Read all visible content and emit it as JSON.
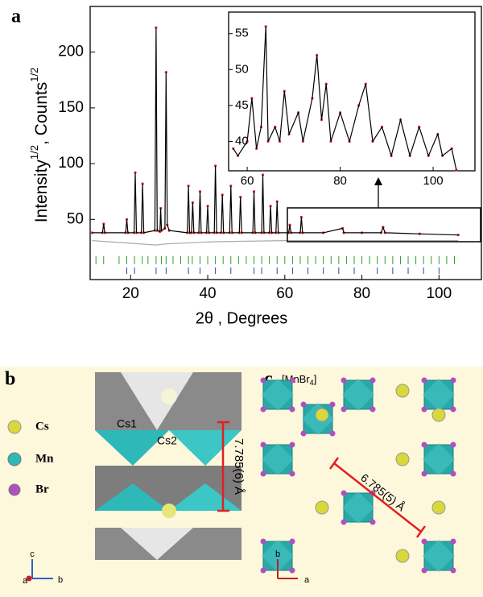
{
  "chart_data": {
    "type": "line",
    "panel_label": "a",
    "x_label": "2θ , Degrees",
    "y_label": [
      "Intensity",
      "1/2",
      ", Counts",
      "1/2"
    ],
    "xlim": [
      9.5,
      111
    ],
    "ylim": [
      -4,
      241
    ],
    "xticks": [
      20,
      40,
      60,
      80,
      100
    ],
    "yticks": [
      50,
      100,
      150,
      200
    ],
    "series": [
      {
        "color": "#000000",
        "marker_color": "#e0282a",
        "x": [
          10,
          12.7,
          13,
          13.3,
          18.7,
          19,
          19.3,
          20.9,
          21.2,
          21.5,
          22.8,
          23.1,
          23.4,
          26.3,
          26.6,
          26.9,
          27.6,
          27.8,
          28,
          28.9,
          29.2,
          29.5,
          30,
          34.7,
          35,
          35.3,
          35.8,
          36.1,
          36.4,
          37.7,
          38,
          38.3,
          39.7,
          40,
          40.3,
          41.7,
          42,
          42.3,
          43.5,
          43.8,
          44.1,
          45.7,
          46,
          46.3,
          48.2,
          48.5,
          48.8,
          51.7,
          52,
          52.3,
          54,
          54.3,
          54.6,
          56,
          56.3,
          56.6,
          57.7,
          58,
          58.3,
          61,
          61.3,
          61.6,
          64,
          64.3,
          64.6,
          70,
          75,
          75.3,
          80,
          85,
          85.5,
          86,
          95,
          105
        ],
        "values": [
          38,
          38,
          46,
          38,
          38,
          50,
          38,
          38,
          92,
          38,
          38,
          82,
          38,
          40,
          222,
          40,
          39,
          60,
          40,
          42,
          182,
          45,
          40,
          38,
          80,
          38,
          38,
          65,
          38,
          38,
          75,
          38,
          38,
          62,
          38,
          38,
          98,
          38,
          38,
          72,
          38,
          38,
          80,
          38,
          38,
          70,
          38,
          38,
          75,
          38,
          38,
          90,
          38,
          38,
          62,
          38,
          38,
          66,
          38,
          38,
          45,
          38,
          38,
          52,
          38,
          38,
          42,
          38,
          38,
          38,
          43,
          38,
          37,
          36
        ]
      },
      {
        "color": "#aaaaaa",
        "x": [
          10,
          26.6,
          29.2,
          42,
          60,
          105
        ],
        "values": [
          31,
          27,
          28,
          30,
          31,
          31
        ]
      }
    ],
    "bragg": [
      {
        "color": "#2ca02c",
        "positions": [
          11,
          13,
          17,
          19,
          21,
          23,
          24.5,
          26.6,
          28,
          29.2,
          31,
          33,
          35,
          36,
          38,
          40,
          42,
          44,
          46,
          48,
          50,
          52,
          54,
          56,
          58,
          60,
          62,
          64,
          66,
          68,
          70,
          72,
          74,
          76,
          78,
          80,
          82,
          84,
          86,
          88,
          90,
          92,
          94,
          96,
          98,
          100,
          102,
          104
        ]
      },
      {
        "color": "#3a3aa8",
        "positions": [
          19,
          21,
          26.6,
          29.2,
          35,
          38,
          42,
          46,
          52,
          54,
          58,
          62,
          66,
          70,
          74,
          78,
          84,
          88,
          92,
          96,
          100
        ]
      }
    ],
    "inset": {
      "xlim": [
        56,
        109
      ],
      "ylim": [
        35.9,
        58
      ],
      "xticks": [
        60,
        80,
        100
      ],
      "yticks": [
        40,
        45,
        50,
        55
      ],
      "x": [
        57,
        58,
        60,
        61,
        62,
        63,
        64,
        64.5,
        66,
        67,
        68,
        69,
        71,
        72,
        74,
        75,
        76,
        77,
        78,
        80,
        82,
        84,
        85.5,
        87,
        89,
        91,
        93,
        95,
        97,
        99,
        101,
        102,
        104,
        105
      ],
      "values": [
        39,
        38,
        40,
        46,
        39,
        42,
        56,
        40,
        42,
        40,
        47,
        41,
        44,
        40,
        46,
        52,
        43,
        48,
        40,
        44,
        40,
        45,
        48,
        40,
        42,
        38,
        43,
        38,
        42,
        38,
        41,
        38,
        39,
        36
      ]
    }
  },
  "panels": {
    "b": {
      "label": "b",
      "legend": [
        "Cs",
        "Mn",
        "Br"
      ],
      "site_labels": [
        "Cs1",
        "Cs2"
      ],
      "distance": "7.785(6) Å",
      "axes": [
        "c",
        "a",
        "b"
      ]
    },
    "c": {
      "label": "c",
      "unit": [
        "[MnBr",
        "4",
        "]"
      ],
      "distance": "6.785(5) Å",
      "axes": [
        "b",
        "a"
      ]
    }
  }
}
